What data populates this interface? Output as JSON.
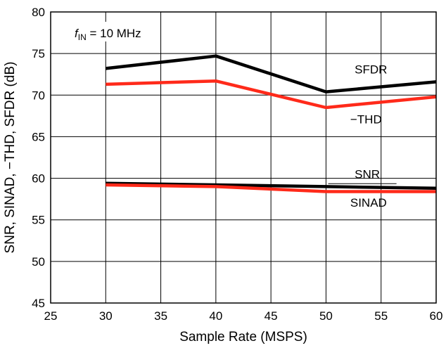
{
  "chart_data": {
    "type": "line",
    "xlabel": "Sample Rate (MSPS)",
    "ylabel": "SNR, SINAD, −THD, SFDR (dB)",
    "xlim": [
      25,
      60
    ],
    "ylim": [
      45,
      80
    ],
    "xticks": [
      25,
      30,
      35,
      40,
      45,
      50,
      55,
      60
    ],
    "yticks": [
      45,
      50,
      55,
      60,
      65,
      70,
      75,
      80
    ],
    "grid": true,
    "annotation": {
      "prefix": "f",
      "subscript": "IN",
      "text": " = 10 MHz"
    },
    "series": [
      {
        "name": "SFDR",
        "color": "#000000",
        "x": [
          30,
          40,
          50,
          60
        ],
        "y": [
          73.2,
          74.7,
          70.4,
          71.6
        ]
      },
      {
        "name": "−THD",
        "color": "#ff2a1a",
        "x": [
          30,
          40,
          50,
          60
        ],
        "y": [
          71.3,
          71.7,
          68.5,
          69.8
        ]
      },
      {
        "name": "SNR",
        "color": "#000000",
        "x": [
          30,
          40,
          50,
          60
        ],
        "y": [
          59.4,
          59.2,
          59.0,
          58.8
        ]
      },
      {
        "name": "SINAD",
        "color": "#ff2a1a",
        "x": [
          30,
          40,
          50,
          60
        ],
        "y": [
          59.2,
          59.0,
          58.4,
          58.4
        ]
      }
    ]
  }
}
